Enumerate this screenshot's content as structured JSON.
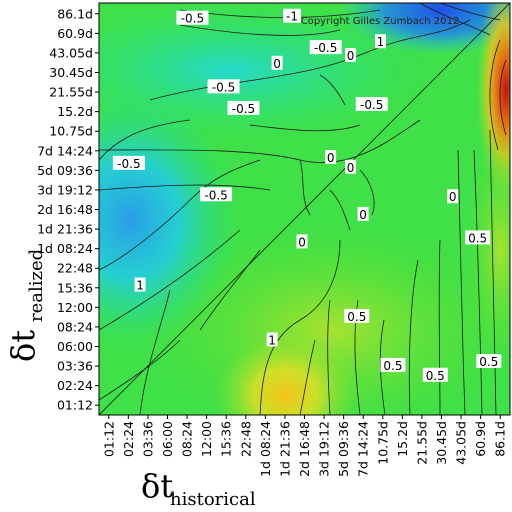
{
  "chart_data": {
    "type": "heatmap",
    "copyright": "Copyright Gilles Zumbach 2012",
    "xlabel": {
      "symbol": "δt",
      "subscript": "historical"
    },
    "ylabel": {
      "symbol": "δt",
      "subscript": "realized"
    },
    "ticks": [
      "01:12",
      "02:24",
      "03:36",
      "06:00",
      "08:24",
      "12:00",
      "15:36",
      "22:48",
      "1d 08:24",
      "1d 21:36",
      "2d 16:48",
      "3d 19:12",
      "5d 09:36",
      "7d 14:24",
      "10.75d",
      "15.2d",
      "21.55d",
      "30.45d",
      "43.05d",
      "60.9d",
      "86.1d"
    ],
    "colorscale": [
      "#1f6fe0",
      "#22c6e6",
      "#26e27a",
      "#49e22f",
      "#bfe22d",
      "#f2c21a",
      "#ee6a12",
      "#c81a10"
    ],
    "grid": false,
    "contour_levels": [
      "-1",
      "-0.5",
      "0",
      "0.5",
      "1"
    ],
    "contour_labels": [
      {
        "text": "-0.5",
        "x": 7.5,
        "y": 20.2
      },
      {
        "text": "-1",
        "x": 15.5,
        "y": 20.3
      },
      {
        "text": "-0.5",
        "x": 18.2,
        "y": 18.7
      },
      {
        "text": "0",
        "x": 14.3,
        "y": 17.9
      },
      {
        "text": "0",
        "x": 20.2,
        "y": 18.3
      },
      {
        "text": "1",
        "x": 22.6,
        "y": 19.0
      },
      {
        "text": "-0.5",
        "x": 10.0,
        "y": 16.7
      },
      {
        "text": "-0.5",
        "x": 11.6,
        "y": 15.6
      },
      {
        "text": "-0.5",
        "x": 21.9,
        "y": 15.8
      },
      {
        "text": "-0.5",
        "x": 2.4,
        "y": 12.8
      },
      {
        "text": "0",
        "x": 18.6,
        "y": 13.1
      },
      {
        "text": "0",
        "x": 20.2,
        "y": 12.6
      },
      {
        "text": "-0.5",
        "x": 9.4,
        "y": 11.2
      },
      {
        "text": "0",
        "x": 21.2,
        "y": 10.2
      },
      {
        "text": "0",
        "x": 28.4,
        "y": 11.1
      },
      {
        "text": "0",
        "x": 16.3,
        "y": 8.8
      },
      {
        "text": "0.5",
        "x": 30.4,
        "y": 9.0
      },
      {
        "text": "1",
        "x": 3.3,
        "y": 6.6
      },
      {
        "text": "0.5",
        "x": 20.7,
        "y": 5.0
      },
      {
        "text": "1",
        "x": 13.9,
        "y": 3.8
      },
      {
        "text": "0.5",
        "x": 23.6,
        "y": 2.5
      },
      {
        "text": "0.5",
        "x": 27.0,
        "y": 2.0
      },
      {
        "text": "0.5",
        "x": 31.3,
        "y": 2.7
      }
    ]
  }
}
